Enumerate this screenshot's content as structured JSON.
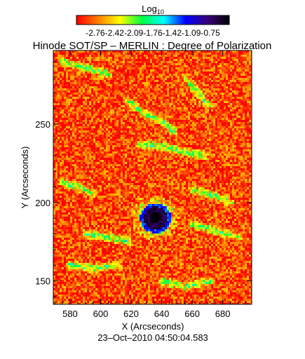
{
  "chart_data": {
    "type": "heatmap",
    "title": "Hinode SOT/SP – MERLIN : Degree of Polarization",
    "colorbar": {
      "label_base": "Log",
      "label_sub": "10",
      "range": [
        -2.76,
        -0.75
      ],
      "ticks": [
        "-2.76",
        "-2.42",
        "-2.09",
        "-1.76",
        "-1.42",
        "-1.09",
        "-0.75"
      ],
      "colormap": [
        "#ff0000",
        "#ff8000",
        "#ffff00",
        "#00ff40",
        "#00ffff",
        "#0000ff",
        "#3a007a",
        "#000000"
      ]
    },
    "xlabel": "X (Arcseconds)",
    "ylabel": "Y (Arcseconds)",
    "xlim": [
      569,
      699
    ],
    "ylim": [
      135,
      297
    ],
    "xticks": [
      580,
      600,
      620,
      640,
      660,
      680
    ],
    "yticks": [
      150,
      200,
      250
    ],
    "timestamp": "23–Oct–2010  04:50:04.583",
    "features": {
      "sunspot_center": [
        636,
        190
      ],
      "sunspot_radius_arcsec": 8,
      "background_level": -2.6
    }
  }
}
